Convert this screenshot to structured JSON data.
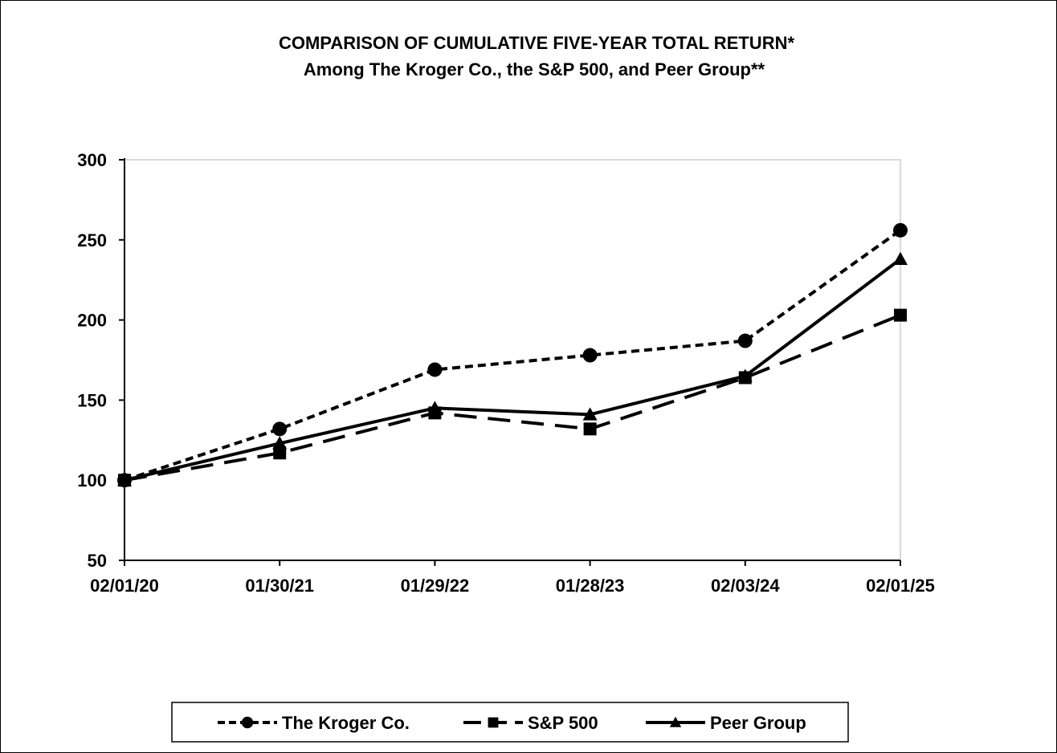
{
  "chart_data": {
    "type": "line",
    "title": "COMPARISON OF CUMULATIVE FIVE-YEAR TOTAL RETURN*",
    "subtitle": "Among The Kroger Co., the S&P 500, and Peer Group**",
    "categories": [
      "02/01/20",
      "01/30/21",
      "01/29/22",
      "01/28/23",
      "02/03/24",
      "02/01/25"
    ],
    "ylim": [
      50,
      300
    ],
    "yticks": [
      50,
      100,
      150,
      200,
      250,
      300
    ],
    "grid": false,
    "legend_position": "bottom",
    "series": [
      {
        "name": "The Kroger Co.",
        "marker": "circle",
        "line": "dotted-dash",
        "values": [
          100,
          132,
          169,
          178,
          187,
          256
        ]
      },
      {
        "name": "S&P 500",
        "marker": "square",
        "line": "long-dash",
        "values": [
          100,
          117,
          142,
          132,
          164,
          203
        ]
      },
      {
        "name": "Peer Group",
        "marker": "triangle",
        "line": "solid",
        "values": [
          100,
          123,
          145,
          141,
          165,
          238
        ]
      }
    ]
  }
}
